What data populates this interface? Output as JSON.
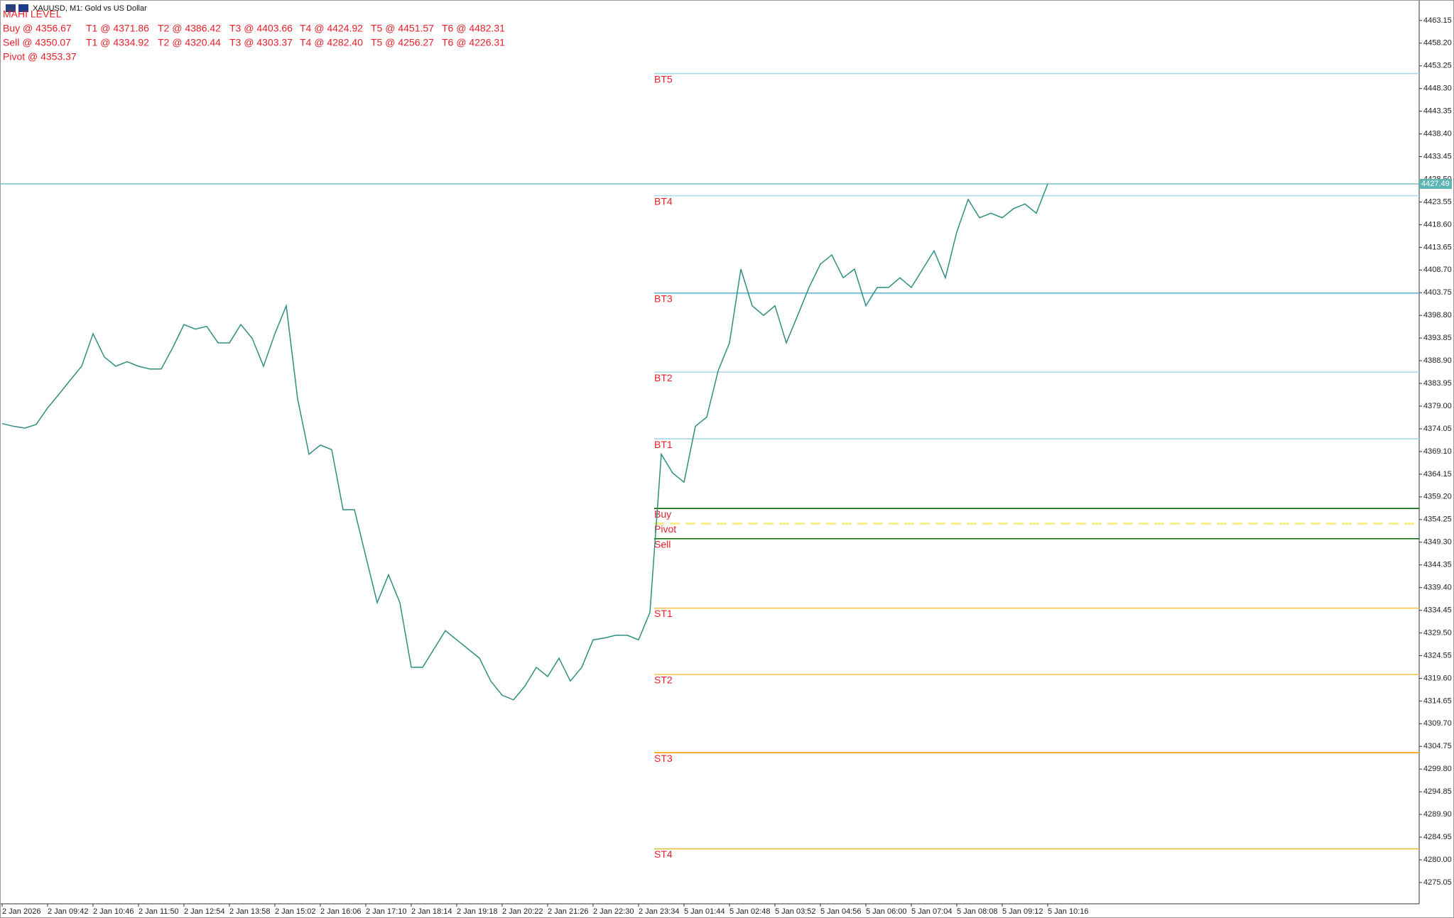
{
  "window_title": "XAUUSD, M1:  Gold vs US Dollar",
  "panel": {
    "title": "MAHI LEVEL",
    "rows": [
      [
        "Buy @ 4356.67",
        "T1 @ 4371.86",
        "T2 @ 4386.42",
        "T3 @ 4403.66",
        "T4 @ 4424.92",
        "T5 @ 4451.57",
        "T6 @ 4482.31"
      ],
      [
        "Sell @ 4350.07",
        "T1 @ 4334.92",
        "T2 @ 4320.44",
        "T3 @ 4303.37",
        "T4 @ 4282.40",
        "T5 @ 4256.27",
        "T6 @ 4226.31"
      ],
      [
        "Pivot @ 4353.37"
      ]
    ]
  },
  "chart_data": {
    "type": "line",
    "color": "#2f8f7f",
    "categories": [
      "2 Jan 2026",
      null,
      null,
      null,
      "2 Jan 09:42",
      null,
      null,
      null,
      "2 Jan 10:46",
      null,
      null,
      null,
      "2 Jan 11:50",
      null,
      null,
      null,
      "2 Jan 12:54",
      null,
      null,
      null,
      "2 Jan 13:58",
      null,
      null,
      null,
      "2 Jan 15:02",
      null,
      null,
      null,
      "2 Jan 16:06",
      null,
      null,
      null,
      "2 Jan 17:10",
      null,
      null,
      null,
      "2 Jan 18:14",
      null,
      null,
      null,
      "2 Jan 19:18",
      null,
      null,
      null,
      "2 Jan 20:22",
      null,
      null,
      null,
      "2 Jan 21:26",
      null,
      null,
      null,
      "2 Jan 22:30",
      null,
      null,
      null,
      "2 Jan 23:34",
      null,
      null,
      null,
      "5 Jan 01:44",
      null,
      null,
      null,
      "5 Jan 02:48",
      null,
      null,
      null,
      "5 Jan 03:52",
      null,
      null,
      null,
      "5 Jan 04:56",
      null,
      null,
      null,
      "5 Jan 06:00",
      null,
      null,
      null,
      "5 Jan 07:04",
      null,
      null,
      null,
      "5 Jan 08:08",
      null,
      null,
      null,
      "5 Jan 09:12",
      null,
      null,
      null,
      "5 Jan 10:16"
    ],
    "values": [
      4375.2,
      4374.6,
      4374.2,
      4375.0,
      4378.6,
      4381.6,
      4384.7,
      4387.7,
      4394.8,
      4389.7,
      4387.7,
      4388.7,
      4387.7,
      4387.1,
      4387.1,
      4391.7,
      4396.8,
      4395.8,
      4396.4,
      4392.8,
      4392.8,
      4396.8,
      4393.8,
      4387.7,
      4394.8,
      4400.9,
      4380.6,
      4368.5,
      4370.5,
      4369.5,
      4356.4,
      4356.4,
      4346.2,
      4336.1,
      4342.2,
      4336.1,
      4322.0,
      4322.0,
      4326.0,
      4330.0,
      4328.0,
      4326.0,
      4324.0,
      4319.0,
      4315.9,
      4314.9,
      4317.9,
      4322.0,
      4320.0,
      4324.0,
      4319.0,
      4322.0,
      4328.0,
      4328.4,
      4329.0,
      4329.0,
      4328.0,
      4334.0,
      4368.5,
      4364.4,
      4362.4,
      4374.6,
      4376.6,
      4386.7,
      4392.8,
      4408.9,
      4400.9,
      4398.8,
      4400.9,
      4392.8,
      4398.8,
      4404.9,
      4410.0,
      4412.0,
      4407.0,
      4408.9,
      4400.9,
      4404.9,
      4404.9,
      4407.0,
      4404.9,
      4408.9,
      4412.9,
      4407.0,
      4417.0,
      4424.1,
      4420.1,
      4421.1,
      4420.1,
      4422.1,
      4423.1,
      4421.1,
      4427.5
    ],
    "ylim": [
      4270.4,
      4467.0
    ],
    "yticks": [
      4463.15,
      {
        "value": 4458.2,
        "label": "4458.20"
      },
      4453.25,
      {
        "value": 4448.3,
        "label": "4448.30"
      },
      4443.35,
      {
        "value": 4438.4,
        "label": "4438.40"
      },
      4433.45,
      {
        "value": 4428.5,
        "label": "4428.50"
      },
      4423.55,
      {
        "value": 4418.6,
        "label": "4418.60"
      },
      4413.65,
      {
        "value": 4408.7,
        "label": "4408.70"
      },
      4403.75,
      {
        "value": 4398.8,
        "label": "4398.80"
      },
      4393.85,
      {
        "value": 4388.9,
        "label": "4388.90"
      },
      4383.95,
      {
        "value": 4379,
        "label": "4379.00"
      },
      4374.05,
      {
        "value": 4369.1,
        "label": "4369.10"
      },
      4364.15,
      {
        "value": 4359.2,
        "label": "4359.20"
      },
      4354.25,
      {
        "value": 4349.3,
        "label": "4349.30"
      },
      4344.35,
      {
        "value": 4339.4,
        "label": "4339.40"
      },
      4334.45,
      {
        "value": 4329.5,
        "label": "4329.50"
      },
      4324.55,
      {
        "value": 4319.6,
        "label": "4319.60"
      },
      4314.65,
      {
        "value": 4309.7,
        "label": "4309.70"
      },
      4304.75,
      {
        "value": 4299.8,
        "label": "4299.80"
      },
      4294.85,
      {
        "value": 4289.9,
        "label": "4289.90"
      },
      4284.95,
      {
        "value": 4280,
        "label": "4280.00"
      },
      4275.05
    ],
    "grid": false,
    "current_price": 4427.49,
    "current_price_color": "#5fb5b5",
    "levels": [
      {
        "name": "BT5",
        "value": 4451.57,
        "color": "#a8d8ea"
      },
      {
        "name": "BT4",
        "value": 4424.92,
        "color": "#a8d8ea"
      },
      {
        "name": "BT3",
        "value": 4403.66,
        "color": "#5fb8d0"
      },
      {
        "name": "BT2",
        "value": 4386.42,
        "color": "#a8d8ea"
      },
      {
        "name": "BT1",
        "value": 4371.86,
        "color": "#a8d8ea"
      },
      {
        "name": "Buy",
        "value": 4356.67,
        "color": "#006400"
      },
      {
        "name": "Pivot",
        "value": 4353.37,
        "color": "#f5f08a",
        "dashed": true
      },
      {
        "name": "Sell",
        "value": 4350.07,
        "color": "#006400"
      },
      {
        "name": "ST1",
        "value": 4334.92,
        "color": "#ffc04d"
      },
      {
        "name": "ST2",
        "value": 4320.44,
        "color": "#ffc04d"
      },
      {
        "name": "ST3",
        "value": 4303.37,
        "color": "#ff9900"
      },
      {
        "name": "ST4",
        "value": 4282.4,
        "color": "#e6c040"
      }
    ]
  }
}
